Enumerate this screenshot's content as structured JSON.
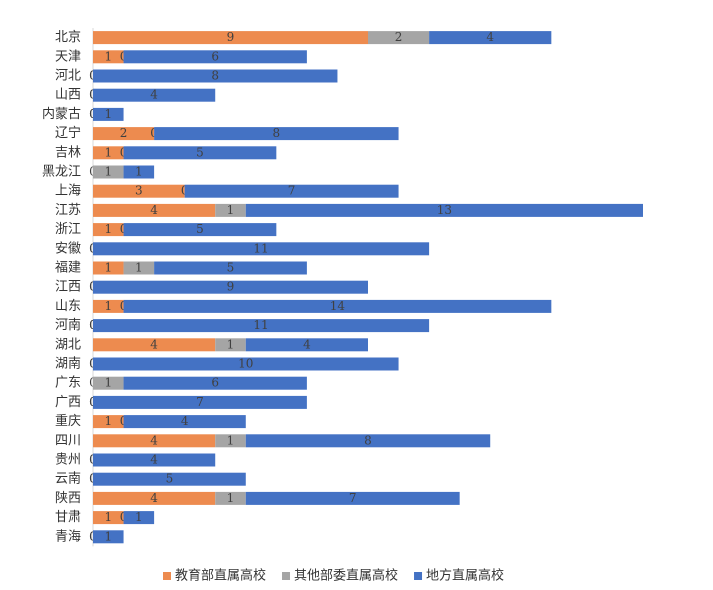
{
  "chart_data": {
    "type": "stacked-barh",
    "categories": [
      "北京",
      "天津",
      "河北",
      "山西",
      "内蒙古",
      "辽宁",
      "吉林",
      "黑龙江",
      "上海",
      "江苏",
      "浙江",
      "安徽",
      "福建",
      "江西",
      "山东",
      "河南",
      "湖北",
      "湖南",
      "广东",
      "广西",
      "重庆",
      "四川",
      "贵州",
      "云南",
      "陕西",
      "甘肃",
      "青海"
    ],
    "series": [
      {
        "name": "教育部直属高校",
        "color": "#ed8b4f",
        "values": [
          9,
          1,
          0,
          0,
          0,
          2,
          1,
          0,
          3,
          4,
          1,
          0,
          1,
          0,
          1,
          0,
          4,
          0,
          0,
          0,
          1,
          4,
          0,
          0,
          4,
          1,
          0
        ]
      },
      {
        "name": "其他部委直属高校",
        "color": "#a5a5a5",
        "values": [
          2,
          0,
          0,
          0,
          0,
          0,
          0,
          1,
          0,
          1,
          0,
          0,
          1,
          0,
          0,
          0,
          1,
          0,
          1,
          0,
          0,
          1,
          0,
          0,
          1,
          0,
          0
        ]
      },
      {
        "name": "地方直属高校",
        "color": "#4472c4",
        "values": [
          4,
          6,
          8,
          4,
          1,
          8,
          5,
          1,
          7,
          13,
          5,
          11,
          5,
          9,
          14,
          11,
          4,
          10,
          6,
          7,
          4,
          8,
          4,
          5,
          7,
          1,
          1
        ]
      }
    ],
    "legend": "bottom"
  }
}
